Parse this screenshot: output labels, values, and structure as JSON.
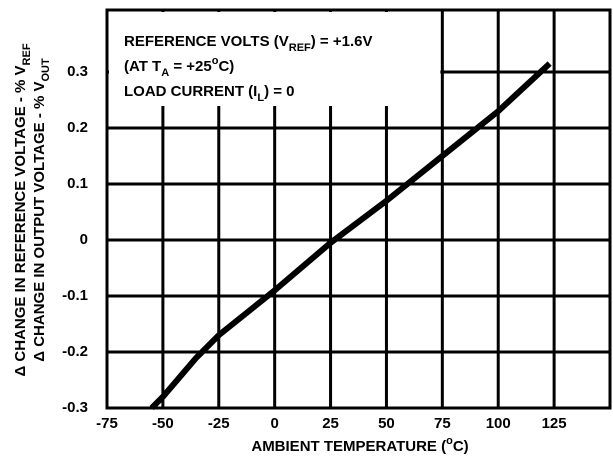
{
  "chart_data": {
    "type": "line",
    "x_label": [
      {
        "text": "AMBIENT TEMPERATURE ("
      },
      {
        "text": "o",
        "sup": true
      },
      {
        "text": "C)"
      }
    ],
    "y_label": [
      [
        {
          "text": "Δ CHANGE IN REFERENCE VOLTAGE - % V"
        },
        {
          "text": "REF",
          "sub": true
        }
      ],
      [
        {
          "text": "Δ CHANGE IN OUTPUT VOLTAGE - % V"
        },
        {
          "text": "OUT",
          "sub": true
        }
      ]
    ],
    "annotations": [
      [
        {
          "text": "REFERENCE VOLTS (V"
        },
        {
          "text": "REF",
          "sub": true
        },
        {
          "text": ") = +1.6V"
        }
      ],
      [
        {
          "text": "(AT T"
        },
        {
          "text": "A",
          "sub": true
        },
        {
          "text": " = +25"
        },
        {
          "text": "o",
          "sup": true
        },
        {
          "text": "C)"
        }
      ],
      [
        {
          "text": "LOAD CURRENT (I"
        },
        {
          "text": "L",
          "sub": true
        },
        {
          "text": ") = 0"
        }
      ]
    ],
    "x": [
      -55,
      -50,
      -35,
      -25,
      0,
      25,
      50,
      75,
      100,
      123
    ],
    "series": [
      {
        "color": "#000000",
        "values": [
          -0.3,
          -0.28,
          -0.21,
          -0.17,
          -0.09,
          -0.005,
          0.07,
          0.15,
          0.23,
          0.315
        ]
      }
    ],
    "xlim": [
      -75,
      150
    ],
    "xticks": [
      -75,
      -50,
      -25,
      0,
      25,
      50,
      75,
      100,
      125
    ],
    "ylim": [
      -0.3,
      0.4
    ],
    "yticks": [
      -0.3,
      -0.2,
      -0.1,
      0,
      0.1,
      0.2,
      0.3
    ],
    "grid": true
  }
}
